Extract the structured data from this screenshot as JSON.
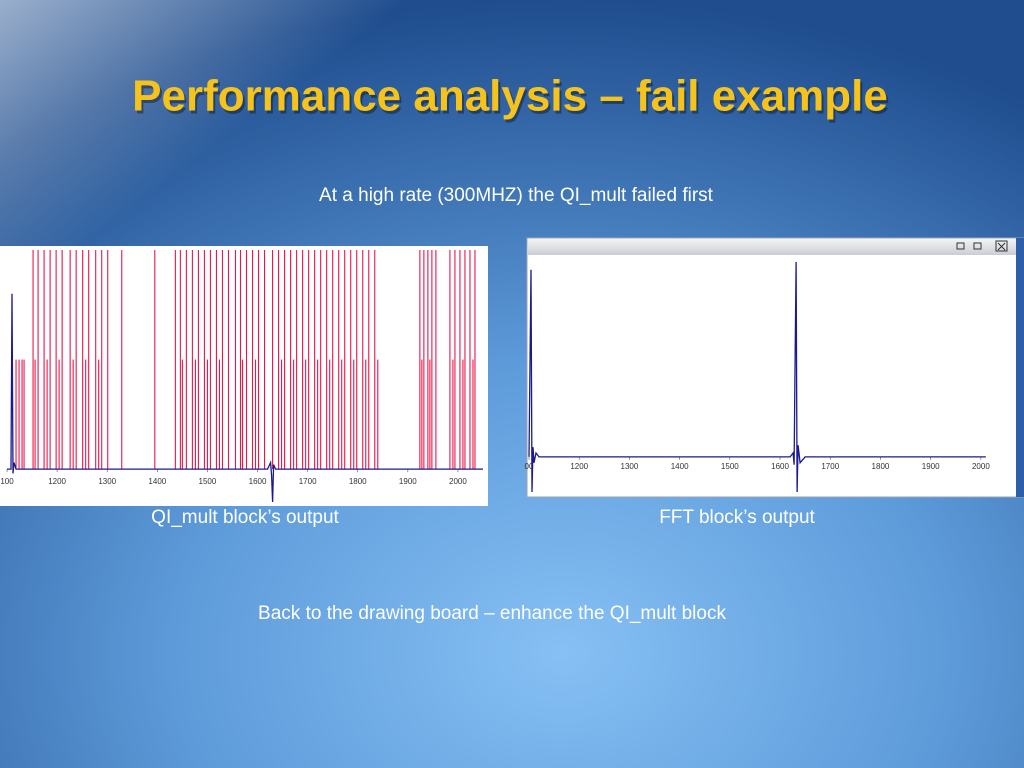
{
  "title": "Performance analysis – fail example",
  "subtitle": "At a high rate (300MHZ) the QI_mult failed first",
  "captions": [
    "QI_mult block’s output",
    "FFT block’s output"
  ],
  "footer": "Back to the drawing board – enhance the QI_mult block",
  "chart_data": [
    {
      "type": "line",
      "xlim": [
        1086,
        2060
      ],
      "xticks": [
        {
          "value": 1100,
          "label": "100"
        },
        1200,
        1300,
        1400,
        1500,
        1600,
        1700,
        1800,
        1900,
        2000
      ],
      "ylim": [
        -0.15,
        1.0
      ],
      "series": [
        {
          "color": "#e8174a",
          "style": "stem",
          "x": [
            1118,
            1124,
            1130,
            1134,
            1152,
            1156,
            1162,
            1174,
            1180,
            1186,
            1198,
            1204,
            1210,
            1226,
            1232,
            1238,
            1251,
            1257,
            1263,
            1277,
            1283,
            1289,
            1301,
            1329,
            1395,
            1436,
            1446,
            1450,
            1458,
            1470,
            1476,
            1482,
            1494,
            1500,
            1506,
            1518,
            1524,
            1530,
            1542,
            1556,
            1566,
            1570,
            1578,
            1590,
            1596,
            1602,
            1614,
            1630,
            1642,
            1648,
            1654,
            1666,
            1672,
            1678,
            1690,
            1696,
            1702,
            1714,
            1720,
            1726,
            1738,
            1744,
            1750,
            1762,
            1768,
            1774,
            1786,
            1792,
            1798,
            1810,
            1816,
            1822,
            1834,
            1840,
            1924,
            1928,
            1932,
            1940,
            1944,
            1948,
            1956,
            1984,
            1990,
            1994,
            2004,
            2010,
            2014,
            2024,
            2030,
            2034
          ],
          "values": [
            0.5,
            0.5,
            0.5,
            0.5,
            1.0,
            0.5,
            1.0,
            1.0,
            0.5,
            1.0,
            1.0,
            0.5,
            1.0,
            1.0,
            0.5,
            1.0,
            1.0,
            0.5,
            1.0,
            1.0,
            0.5,
            1.0,
            1.0,
            1.0,
            1.0,
            1.0,
            1.0,
            0.5,
            1.0,
            1.0,
            0.5,
            1.0,
            1.0,
            0.5,
            1.0,
            1.0,
            0.5,
            1.0,
            1.0,
            1.0,
            1.0,
            0.5,
            1.0,
            1.0,
            0.5,
            1.0,
            1.0,
            1.0,
            1.0,
            0.5,
            1.0,
            1.0,
            0.5,
            1.0,
            1.0,
            0.5,
            1.0,
            1.0,
            0.5,
            1.0,
            1.0,
            0.5,
            1.0,
            1.0,
            0.5,
            1.0,
            1.0,
            0.5,
            1.0,
            1.0,
            0.5,
            1.0,
            1.0,
            0.5,
            1.0,
            0.5,
            1.0,
            1.0,
            0.5,
            1.0,
            1.0,
            1.0,
            0.5,
            1.0,
            1.0,
            0.5,
            1.0,
            1.0,
            0.5,
            1.0
          ]
        },
        {
          "color": "#1a1a8c",
          "style": "line",
          "x": [
            1100,
            1108,
            1110,
            1112,
            1114,
            1118,
            1620,
            1626,
            1628,
            1630,
            1632,
            1636,
            2050
          ],
          "values": [
            0,
            0,
            0.8,
            -0.02,
            0.03,
            0,
            0,
            0.03,
            -0.03,
            -0.15,
            0.02,
            0,
            0
          ]
        }
      ]
    },
    {
      "type": "line",
      "xlim": [
        1098,
        2062
      ],
      "xticks": [
        {
          "value": 1100,
          "label": "00"
        },
        1200,
        1300,
        1400,
        1500,
        1600,
        1700,
        1800,
        1900,
        2000
      ],
      "ylim": [
        -0.18,
        1.0
      ],
      "series": [
        {
          "color": "#1a1a8c",
          "style": "line",
          "x": [
            1100,
            1104,
            1106,
            1108,
            1110,
            1114,
            1120,
            1620,
            1626,
            1628,
            1630,
            1632,
            1634,
            1636,
            1640,
            1650,
            2010
          ],
          "values": [
            0,
            0.96,
            -0.18,
            0.05,
            -0.03,
            0.02,
            0,
            0,
            0.02,
            -0.04,
            0.5,
            1.0,
            -0.18,
            0.06,
            -0.03,
            0,
            0
          ]
        }
      ]
    }
  ]
}
